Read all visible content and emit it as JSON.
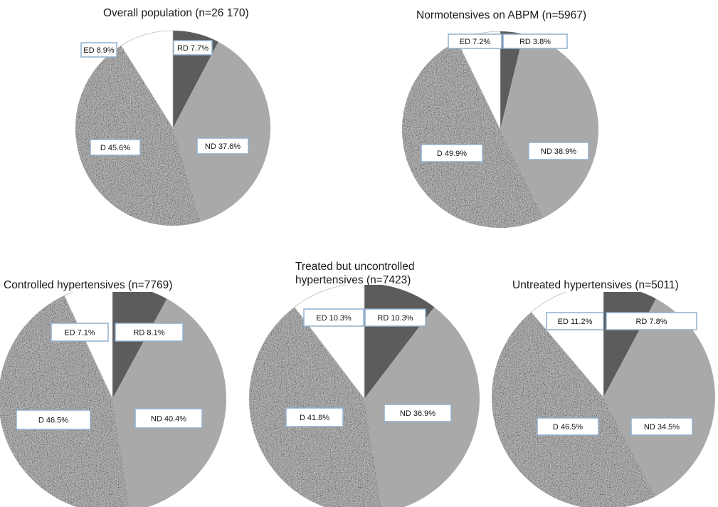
{
  "colors": {
    "RD": "#5c5c5c",
    "ND": "#a9a9a9",
    "D": "speckle",
    "ED": "#ffffff"
  },
  "chart_data": [
    {
      "type": "pie",
      "title": "Overall population (n=26 170)",
      "slices": [
        {
          "label": "RD",
          "value": 7.7,
          "text": "RD 7.7%"
        },
        {
          "label": "ND",
          "value": 37.6,
          "text": "ND 37.6%"
        },
        {
          "label": "D",
          "value": 45.6,
          "text": "D 45.6%"
        },
        {
          "label": "ED",
          "value": 8.9,
          "text": "ED 8.9%"
        }
      ]
    },
    {
      "type": "pie",
      "title": "Normotensives on ABPM (n=5967)",
      "slices": [
        {
          "label": "RD",
          "value": 3.8,
          "text": "RD 3.8%"
        },
        {
          "label": "ND",
          "value": 38.9,
          "text": "ND 38.9%"
        },
        {
          "label": "D",
          "value": 49.9,
          "text": "D 49.9%"
        },
        {
          "label": "ED",
          "value": 7.2,
          "text": "ED 7.2%"
        }
      ]
    },
    {
      "type": "pie",
      "title": "Controlled hypertensives (n=7769)",
      "slices": [
        {
          "label": "RD",
          "value": 8.1,
          "text": "RD 8.1%"
        },
        {
          "label": "ND",
          "value": 40.4,
          "text": "ND 40.4%"
        },
        {
          "label": "D",
          "value": 46.5,
          "text": "D 46.5%"
        },
        {
          "label": "ED",
          "value": 7.1,
          "text": "ED 7.1%"
        }
      ]
    },
    {
      "type": "pie",
      "title": "Treated but uncontrolled\nhypertensives (n=7423)",
      "slices": [
        {
          "label": "RD",
          "value": 10.3,
          "text": "RD 10.3%"
        },
        {
          "label": "ND",
          "value": 36.9,
          "text": "ND 36.9%"
        },
        {
          "label": "D",
          "value": 41.8,
          "text": "D 41.8%"
        },
        {
          "label": "ED",
          "value": 10.3,
          "text": "ED 10.3%"
        }
      ]
    },
    {
      "type": "pie",
      "title": "Untreated hypertensives (n=5011)",
      "slices": [
        {
          "label": "RD",
          "value": 7.8,
          "text": "RD 7.8%"
        },
        {
          "label": "ND",
          "value": 34.5,
          "text": "ND 34.5%"
        },
        {
          "label": "D",
          "value": 46.5,
          "text": "D 46.5%"
        },
        {
          "label": "ED",
          "value": 11.2,
          "text": "ED 11.2%"
        }
      ]
    }
  ]
}
